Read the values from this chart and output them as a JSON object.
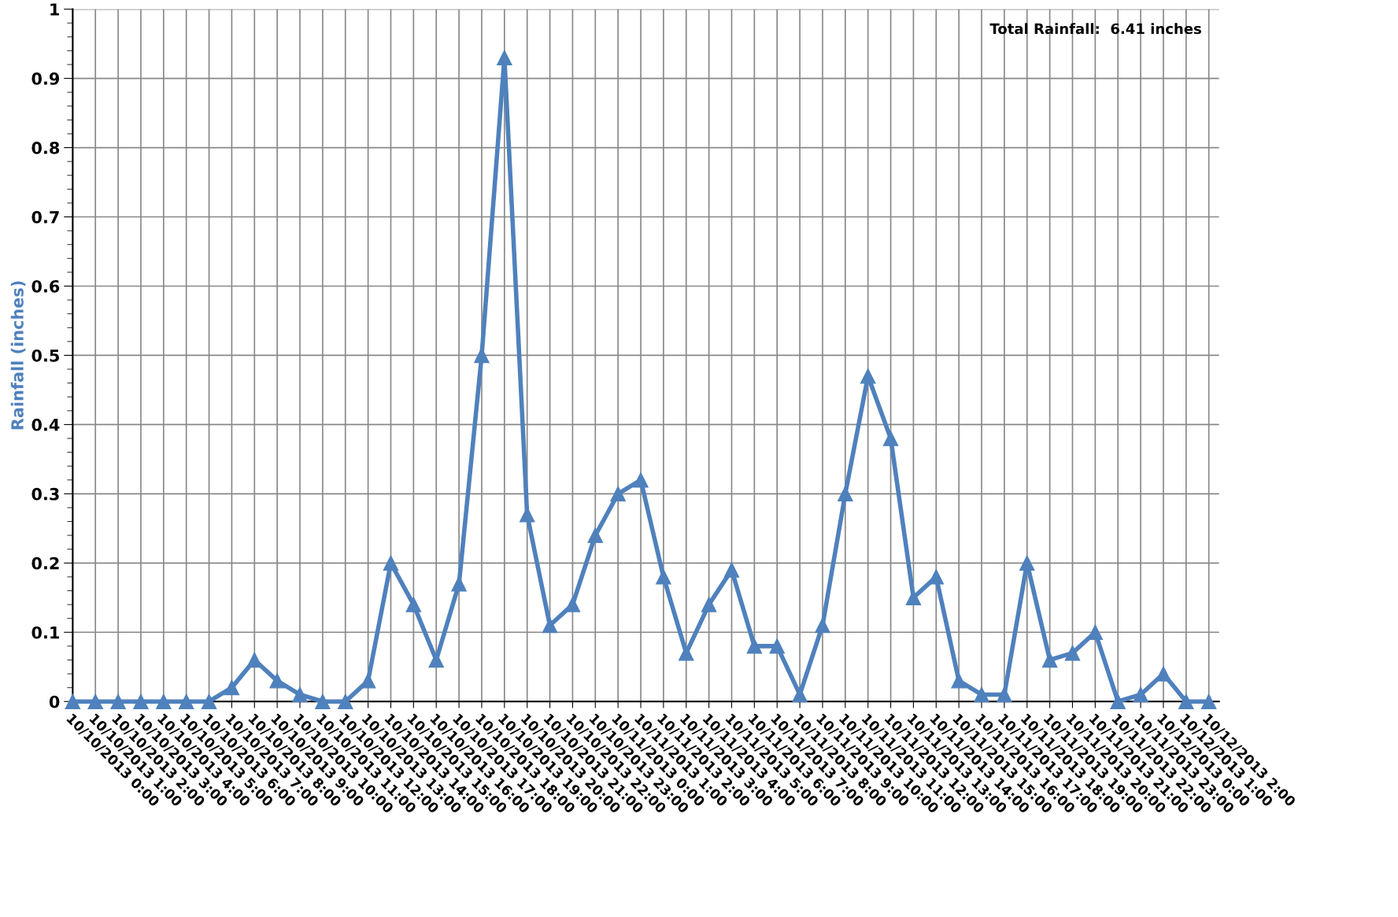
{
  "chart_data": {
    "type": "line",
    "ylabel": "Rainfall (inches)",
    "categories": [
      "10/10/2013 0:00",
      "10/10/2013 1:00",
      "10/10/2013 2:00",
      "10/10/2013 3:00",
      "10/10/2013 4:00",
      "10/10/2013 5:00",
      "10/10/2013 6:00",
      "10/10/2013 7:00",
      "10/10/2013 8:00",
      "10/10/2013 9:00",
      "10/10/2013 10:00",
      "10/10/2013 11:00",
      "10/10/2013 12:00",
      "10/10/2013 13:00",
      "10/10/2013 14:00",
      "10/10/2013 15:00",
      "10/10/2013 16:00",
      "10/10/2013 17:00",
      "10/10/2013 18:00",
      "10/10/2013 19:00",
      "10/10/2013 20:00",
      "10/10/2013 21:00",
      "10/10/2013 22:00",
      "10/10/2013 23:00",
      "10/11/2013 0:00",
      "10/11/2013 1:00",
      "10/11/2013 2:00",
      "10/11/2013 3:00",
      "10/11/2013 4:00",
      "10/11/2013 5:00",
      "10/11/2013 6:00",
      "10/11/2013 7:00",
      "10/11/2013 8:00",
      "10/11/2013 9:00",
      "10/11/2013 10:00",
      "10/11/2013 11:00",
      "10/11/2013 12:00",
      "10/11/2013 13:00",
      "10/11/2013 14:00",
      "10/11/2013 15:00",
      "10/11/2013 16:00",
      "10/11/2013 17:00",
      "10/11/2013 18:00",
      "10/11/2013 19:00",
      "10/11/2013 20:00",
      "10/11/2013 21:00",
      "10/11/2013 22:00",
      "10/11/2013 23:00",
      "10/12/2013 0:00",
      "10/12/2013 1:00",
      "10/12/2013 2:00"
    ],
    "series": [
      {
        "color": "#4f81bd",
        "values": [
          0,
          0,
          0,
          0,
          0,
          0,
          0,
          0.02,
          0.06,
          0.03,
          0.01,
          0,
          0,
          0.03,
          0.2,
          0.14,
          0.06,
          0.17,
          0.5,
          0.93,
          0.27,
          0.11,
          0.14,
          0.24,
          0.3,
          0.32,
          0.18,
          0.07,
          0.14,
          0.19,
          0.08,
          0.08,
          0.01,
          0.11,
          0.3,
          0.47,
          0.38,
          0.15,
          0.18,
          0.03,
          0.01,
          0.01,
          0.2,
          0.06,
          0.07,
          0.1,
          0,
          0.01,
          0.04,
          0,
          0
        ]
      }
    ],
    "ylim": [
      0,
      1
    ],
    "yticks": [
      0,
      0.1,
      0.2,
      0.3,
      0.4,
      0.5,
      0.6,
      0.7,
      0.8,
      0.9,
      1
    ],
    "grid": true,
    "marker": "triangle",
    "line_style": "solid",
    "legend": false,
    "annotations": [
      "Total Rainfall:  6.41 inches"
    ]
  }
}
